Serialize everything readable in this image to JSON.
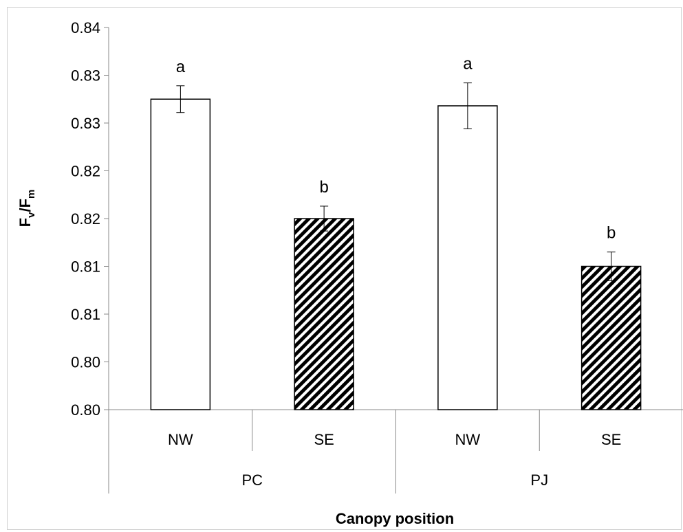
{
  "chart_data": {
    "type": "bar",
    "title": "",
    "xlabel": "Canopy position",
    "ylabel": {
      "main": "F",
      "sub1": "v",
      "mid": "/F",
      "sub2": "m"
    },
    "ylim": [
      0.8,
      0.84
    ],
    "y_ticks": [
      0.8,
      0.805,
      0.81,
      0.815,
      0.82,
      0.825,
      0.83,
      0.835,
      0.84
    ],
    "y_tick_labels": [
      "0.80",
      "0.80",
      "0.81",
      "0.81",
      "0.82",
      "0.82",
      "0.83",
      "0.83",
      "0.84"
    ],
    "groups": [
      "PC",
      "PJ"
    ],
    "bars": [
      {
        "group": "PC",
        "category": "NW",
        "value": 0.8325,
        "error": 0.0014,
        "letter": "a",
        "pattern": "plain"
      },
      {
        "group": "PC",
        "category": "SE",
        "value": 0.82,
        "error": 0.0013,
        "letter": "b",
        "pattern": "hatched"
      },
      {
        "group": "PJ",
        "category": "NW",
        "value": 0.8318,
        "error": 0.0024,
        "letter": "a",
        "pattern": "plain"
      },
      {
        "group": "PJ",
        "category": "SE",
        "value": 0.815,
        "error": 0.0015,
        "letter": "b",
        "pattern": "hatched"
      }
    ],
    "grid": false,
    "legend": "none"
  }
}
